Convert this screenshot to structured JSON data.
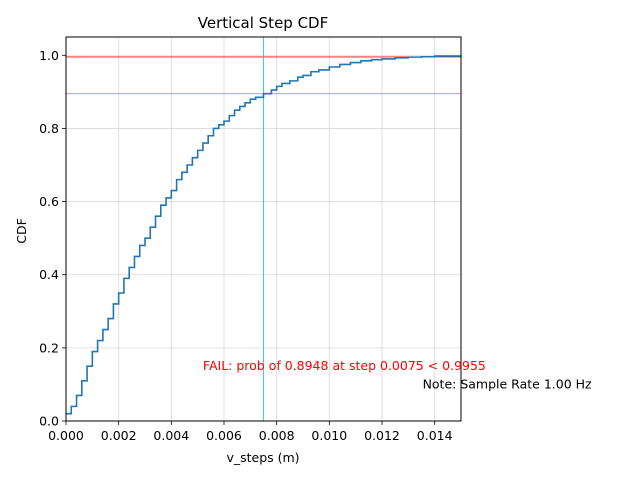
{
  "chart_data": {
    "type": "line",
    "title": "Vertical Step CDF",
    "xlabel": "v_steps (m)",
    "ylabel": "CDF",
    "xlim": [
      0,
      0.015
    ],
    "ylim": [
      0,
      1.05
    ],
    "grid": true,
    "x_ticks": [
      0.0,
      0.002,
      0.004,
      0.006,
      0.008,
      0.01,
      0.012,
      0.014
    ],
    "x_tick_labels": [
      "0.000",
      "0.002",
      "0.004",
      "0.006",
      "0.008",
      "0.010",
      "0.012",
      "0.014"
    ],
    "y_ticks": [
      0.0,
      0.2,
      0.4,
      0.6,
      0.8,
      1.0
    ],
    "y_tick_labels": [
      "0.0",
      "0.2",
      "0.4",
      "0.6",
      "0.8",
      "1.0"
    ],
    "series": [
      {
        "color": "#1f77b4",
        "step": true,
        "x": [
          0,
          0.0002,
          0.0004,
          0.0006,
          0.0008,
          0.001,
          0.0012,
          0.0014,
          0.0016,
          0.0018,
          0.002,
          0.0022,
          0.0024,
          0.0026,
          0.0028,
          0.003,
          0.0032,
          0.0034,
          0.0036,
          0.0038,
          0.004,
          0.0042,
          0.0044,
          0.0046,
          0.0048,
          0.005,
          0.0052,
          0.0054,
          0.0056,
          0.0058,
          0.006,
          0.0062,
          0.0064,
          0.0066,
          0.0068,
          0.007,
          0.0072,
          0.0075,
          0.0078,
          0.008,
          0.0082,
          0.0085,
          0.0088,
          0.009,
          0.0093,
          0.0096,
          0.01,
          0.0104,
          0.0108,
          0.0112,
          0.0116,
          0.012,
          0.0125,
          0.013,
          0.0135,
          0.014,
          0.015
        ],
        "y": [
          0.02,
          0.04,
          0.07,
          0.11,
          0.15,
          0.19,
          0.22,
          0.25,
          0.28,
          0.32,
          0.35,
          0.39,
          0.42,
          0.45,
          0.48,
          0.5,
          0.53,
          0.56,
          0.59,
          0.61,
          0.63,
          0.66,
          0.68,
          0.7,
          0.72,
          0.74,
          0.76,
          0.78,
          0.8,
          0.81,
          0.82,
          0.835,
          0.85,
          0.86,
          0.87,
          0.88,
          0.885,
          0.895,
          0.905,
          0.915,
          0.923,
          0.93,
          0.94,
          0.945,
          0.955,
          0.96,
          0.968,
          0.975,
          0.98,
          0.985,
          0.988,
          0.99,
          0.993,
          0.995,
          0.996,
          0.998,
          0.999
        ]
      }
    ],
    "reference_lines": [
      {
        "orientation": "horizontal",
        "value": 0.9955,
        "color": "#ff0000"
      },
      {
        "orientation": "horizontal",
        "value": 0.8948,
        "color": "#17becf"
      },
      {
        "orientation": "vertical",
        "value": 0.0075,
        "color": "#17becf"
      }
    ],
    "annotations": [
      {
        "text": "FAIL: prob of 0.8948 at step 0.0075 < 0.9955",
        "x": 0.0052,
        "y": 0.15,
        "color": "#ff0000"
      },
      {
        "text": "Note: Sample Rate 1.00 Hz",
        "x": 0.0143,
        "y": 0.1,
        "color": "#000000"
      }
    ]
  }
}
